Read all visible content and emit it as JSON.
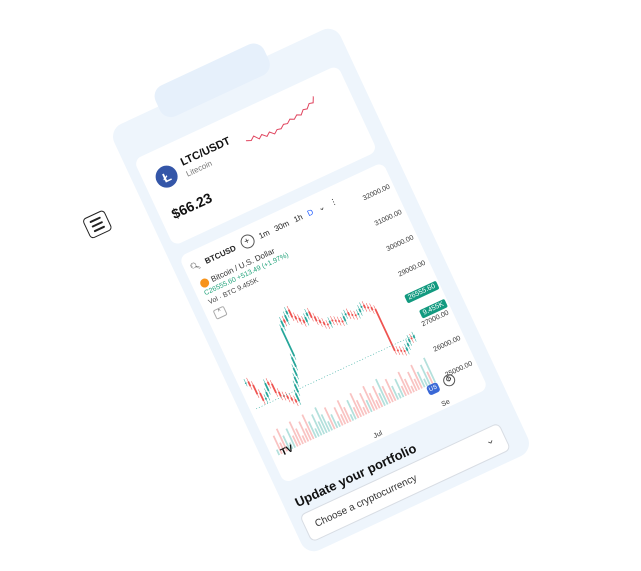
{
  "coin_card": {
    "logo_letter": "Ł",
    "pair": "LTC/USDT",
    "name": "Litecoin",
    "price": "$66.23",
    "sparkline_color": "#e0455f"
  },
  "chart": {
    "symbol": "BTCUSD",
    "add_symbol": "+",
    "timeframes": [
      "1m",
      "30m",
      "1h",
      "D"
    ],
    "active_timeframe": "D",
    "dropdown": "⌄",
    "more": "⋮",
    "title": "Bitcoin / U.S. Dollar",
    "ohlc_line": "C26555.60 +513.49 (+1.97%)",
    "volume_line": "Vol · BTC  9.455K",
    "collapse": "^",
    "y_ticks": [
      "32000.00",
      "31000.00",
      "30000.00",
      "29000.00",
      "28000.00",
      "27000.00",
      "26000.00",
      "25000.00"
    ],
    "price_tag": "26555.60",
    "volume_tag": "9.455K",
    "x_ticks": [
      "Jul",
      "Se"
    ],
    "tv_logo": "TV",
    "flag_btn": "US",
    "gear": "⚙",
    "up_color": "#26a69a",
    "down_color": "#ef5350"
  },
  "chart_data": {
    "type": "line",
    "title": "Bitcoin / U.S. Dollar",
    "ylim": [
      25000,
      32000
    ],
    "y_ticks": [
      32000,
      31000,
      30000,
      29000,
      28000,
      27000,
      26000,
      25000
    ],
    "x_ticks": [
      "Jul",
      "Se"
    ],
    "series": [
      {
        "values": [
          28200,
          27900,
          27300,
          26800,
          26900,
          27200,
          27700,
          27500,
          26900,
          26600,
          26500,
          26300,
          26100,
          25900,
          26400,
          26900,
          27300,
          27800,
          28400,
          30200,
          30600,
          30400,
          30800,
          31000,
          30500,
          30300,
          30100,
          29900,
          30200,
          30400,
          30000,
          29700,
          29500,
          29300,
          29200,
          29400,
          29300,
          29200,
          29100,
          29000,
          29300,
          29400,
          29200,
          29100,
          29000,
          29100,
          29300,
          29400,
          29200,
          29100,
          28900,
          26200,
          26100,
          26000,
          25900,
          26100,
          26300,
          26500,
          26400,
          26555.6
        ]
      }
    ]
  },
  "portfolio": {
    "title": "Update your portfolio",
    "select_placeholder": "Choose a cryptocurrency",
    "chevron": "⌄"
  }
}
